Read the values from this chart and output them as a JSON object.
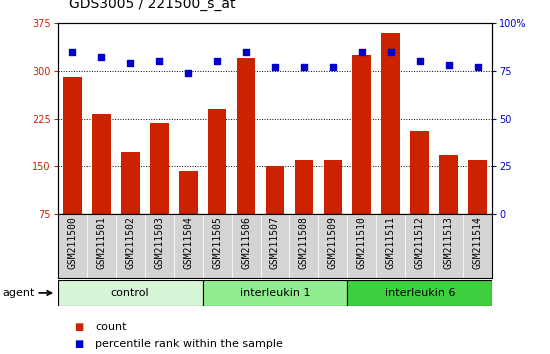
{
  "title": "GDS3005 / 221500_s_at",
  "samples": [
    "GSM211500",
    "GSM211501",
    "GSM211502",
    "GSM211503",
    "GSM211504",
    "GSM211505",
    "GSM211506",
    "GSM211507",
    "GSM211508",
    "GSM211509",
    "GSM211510",
    "GSM211511",
    "GSM211512",
    "GSM211513",
    "GSM211514"
  ],
  "counts": [
    290,
    232,
    173,
    218,
    143,
    240,
    320,
    150,
    160,
    160,
    325,
    360,
    205,
    168,
    160
  ],
  "percentiles": [
    85,
    82,
    79,
    80,
    74,
    80,
    85,
    77,
    77,
    77,
    85,
    85,
    80,
    78,
    77
  ],
  "groups": [
    {
      "label": "control",
      "start": 0,
      "end": 5,
      "color": "#d6f5d6"
    },
    {
      "label": "interleukin 1",
      "start": 5,
      "end": 10,
      "color": "#90ee90"
    },
    {
      "label": "interleukin 6",
      "start": 10,
      "end": 15,
      "color": "#3ecf3e"
    }
  ],
  "ylim_left": [
    75,
    375
  ],
  "ylim_right": [
    0,
    100
  ],
  "yticks_left": [
    75,
    150,
    225,
    300,
    375
  ],
  "yticks_right": [
    0,
    25,
    50,
    75,
    100
  ],
  "bar_color": "#cc2200",
  "dot_color": "#0000cc",
  "grid_color": "#000000",
  "title_fontsize": 10,
  "tick_fontsize": 7,
  "label_fontsize": 8,
  "agent_label": "agent"
}
